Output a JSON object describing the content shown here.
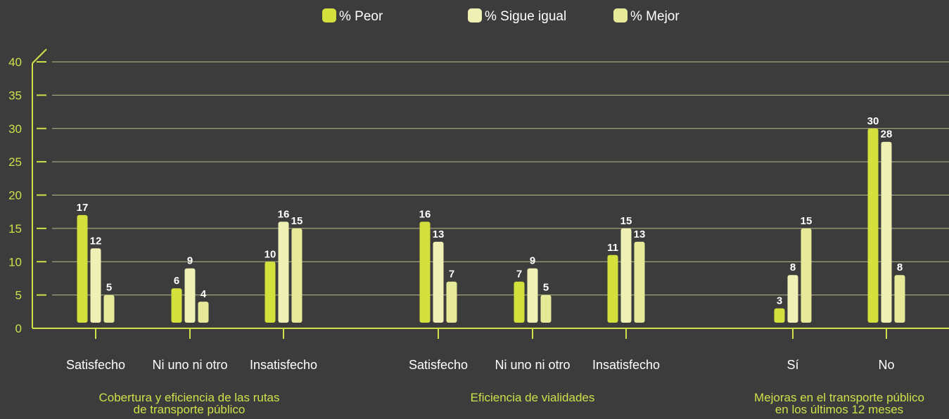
{
  "chart_data": {
    "type": "bar",
    "ylim": [
      0,
      40
    ],
    "yticks": [
      0,
      5,
      10,
      15,
      20,
      25,
      30,
      35,
      40
    ],
    "grid": true,
    "legend_position": "top-center",
    "series_meta": [
      {
        "name": "% Peor",
        "color": "#d4e03c"
      },
      {
        "name": "% Sigue igual",
        "color": "#eef0b4"
      },
      {
        "name": "% Mejor",
        "color": "#e6ea98"
      }
    ],
    "groups": [
      {
        "label_lines": [
          "Cobertura y eficiencia de las rutas",
          "de transporte público"
        ],
        "categories": [
          {
            "label": "Satisfecho",
            "values": [
              17,
              12,
              5
            ]
          },
          {
            "label": "Ni uno ni otro",
            "values": [
              6,
              9,
              4
            ]
          },
          {
            "label": "Insatisfecho",
            "values": [
              10,
              16,
              15
            ]
          }
        ]
      },
      {
        "label_lines": [
          "Eficiencia de vialidades"
        ],
        "categories": [
          {
            "label": "Satisfecho",
            "values": [
              16,
              13,
              7
            ]
          },
          {
            "label": "Ni uno ni otro",
            "values": [
              7,
              9,
              5
            ]
          },
          {
            "label": "Insatisfecho",
            "values": [
              11,
              15,
              13
            ]
          }
        ]
      },
      {
        "label_lines": [
          "Mejoras en el transporte público",
          "en los últimos 12 meses"
        ],
        "categories": [
          {
            "label": "Sí",
            "values": [
              3,
              8,
              15
            ]
          },
          {
            "label": "No",
            "values": [
              30,
              28,
              8
            ]
          }
        ]
      }
    ]
  }
}
